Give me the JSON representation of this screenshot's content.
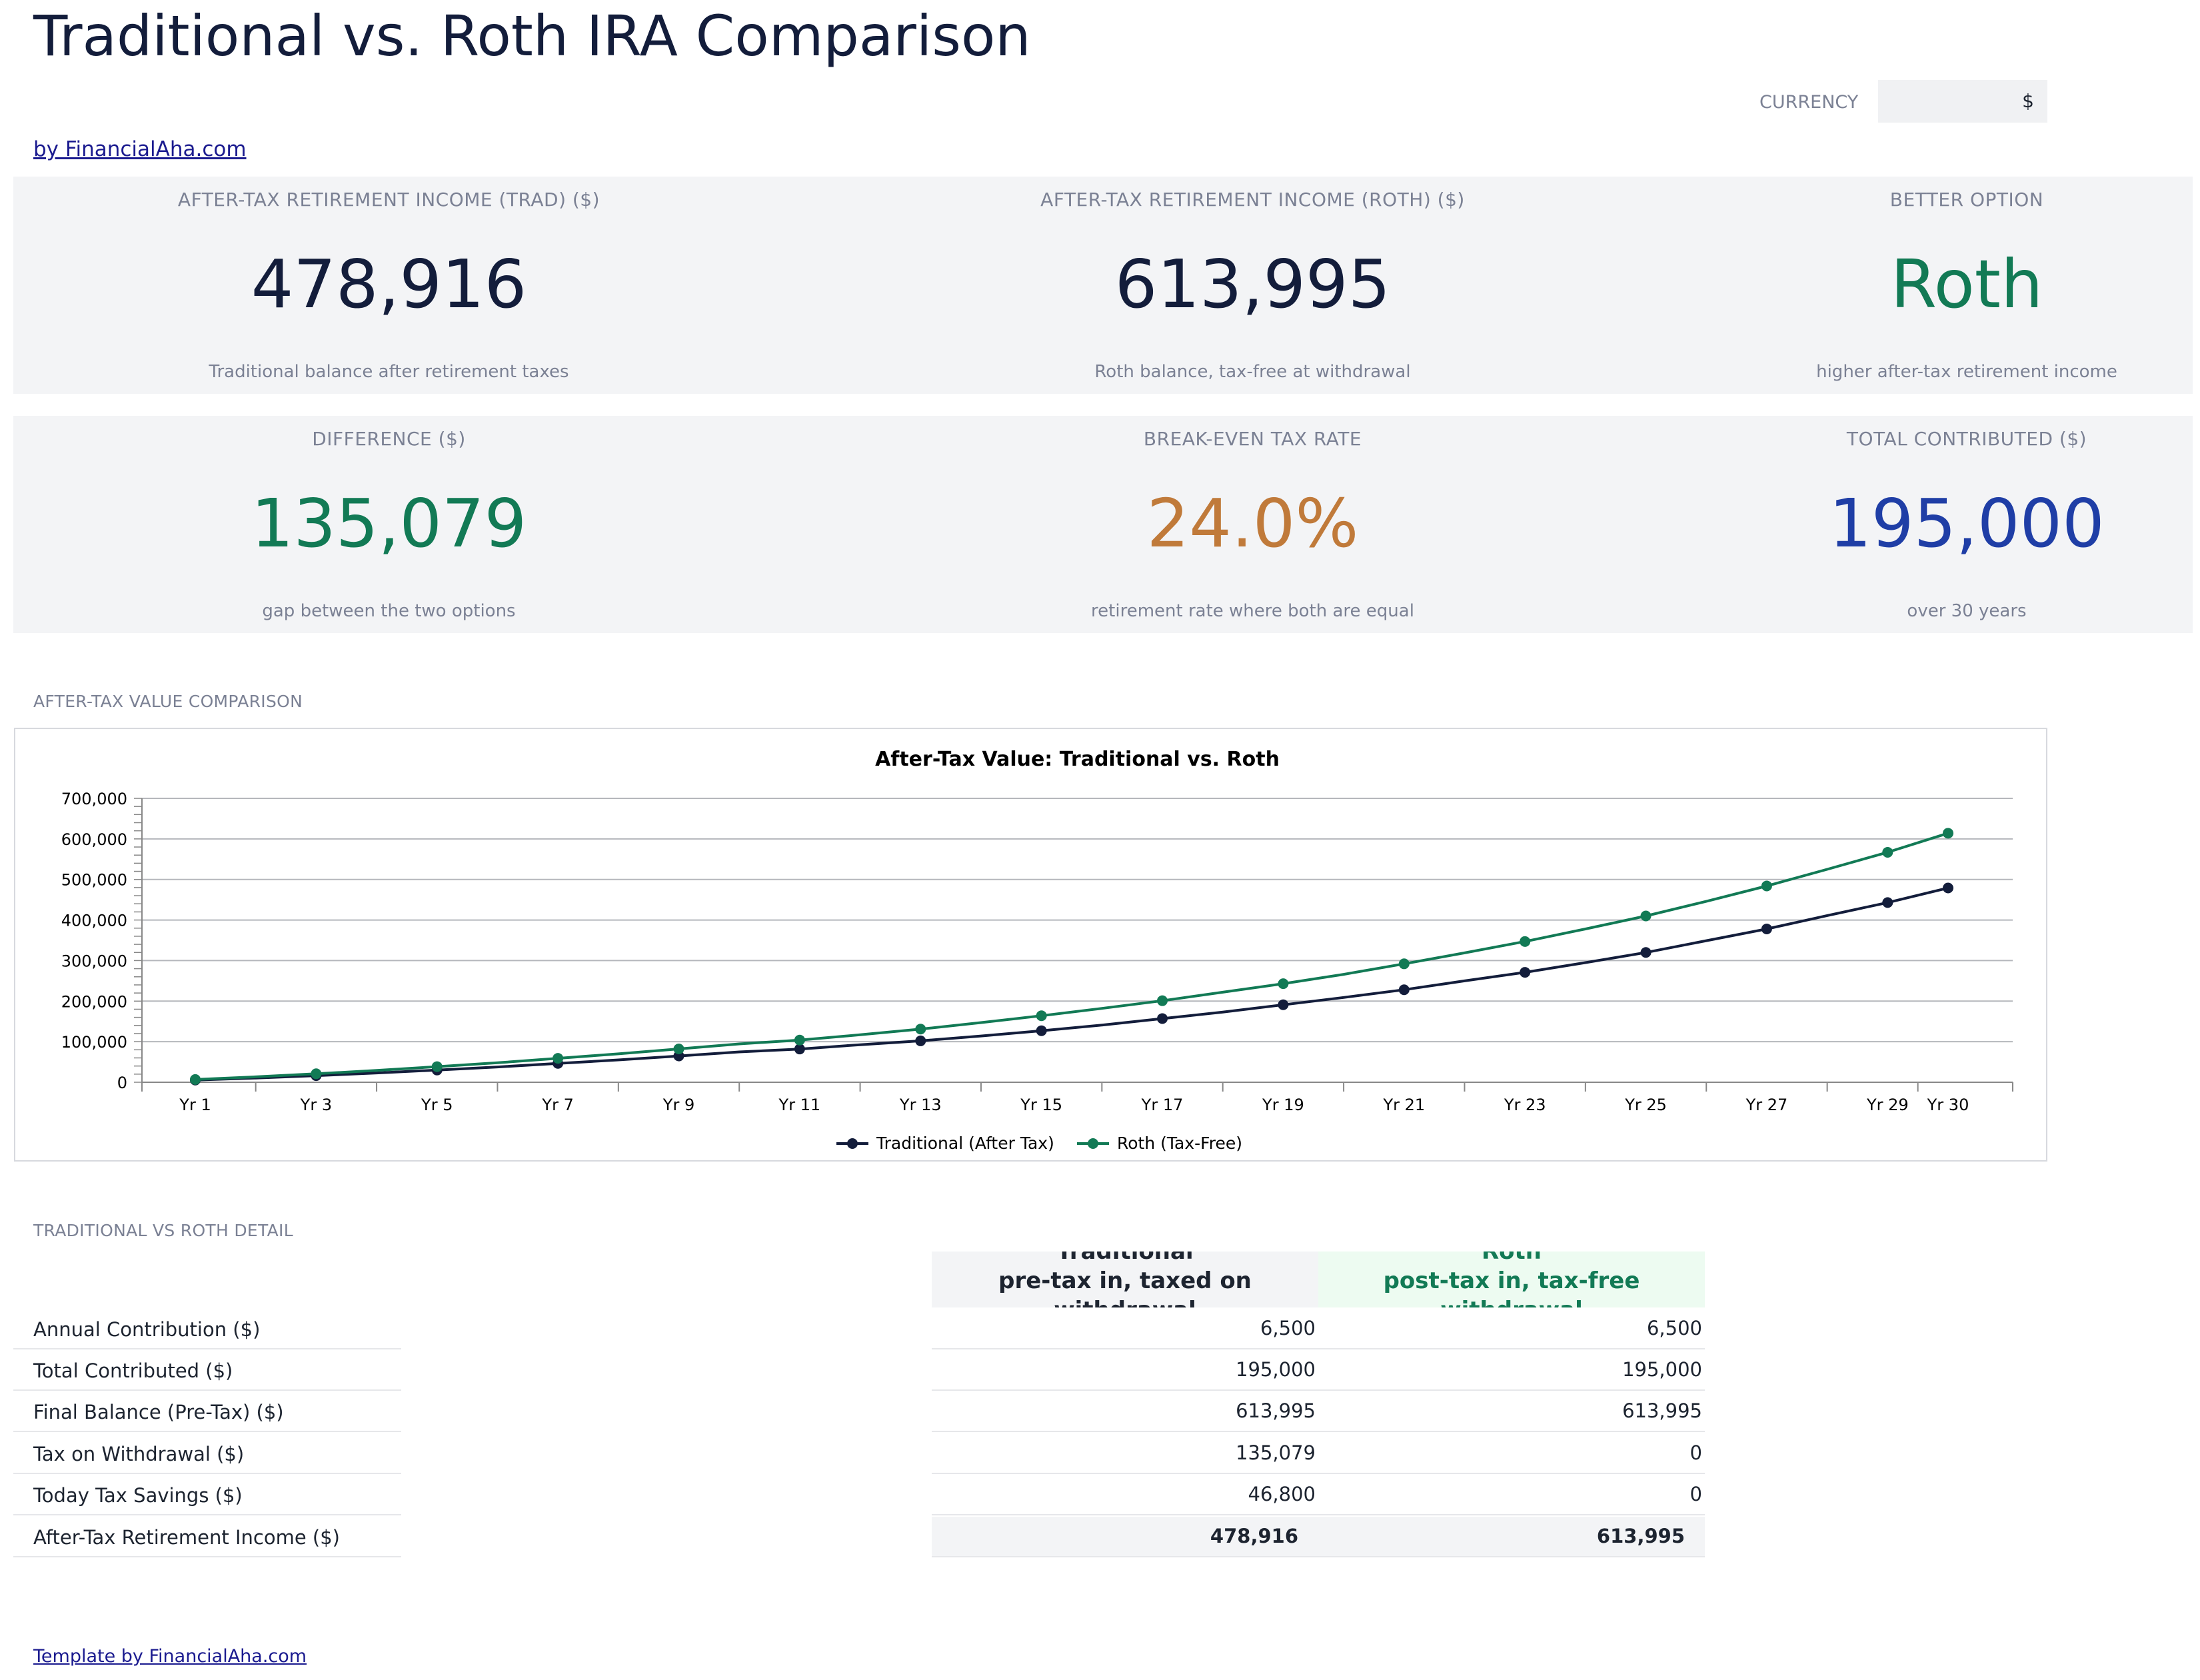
{
  "header": {
    "title": "Traditional vs. Roth IRA Comparison",
    "byline": "by FinancialAha.com",
    "currency_label": "CURRENCY",
    "currency_value": "$"
  },
  "kpis": [
    {
      "label": "AFTER-TAX RETIREMENT INCOME (TRAD) ($)",
      "value": "478,916",
      "sub": "Traditional balance after retirement taxes",
      "color": "#131d3b"
    },
    {
      "label": "AFTER-TAX RETIREMENT INCOME (ROTH) ($)",
      "value": "613,995",
      "sub": "Roth balance, tax-free at withdrawal",
      "color": "#131d3b"
    },
    {
      "label": "BETTER OPTION",
      "value": "Roth",
      "sub": "higher after-tax retirement income",
      "color": "#127a55"
    },
    {
      "label": "DIFFERENCE ($)",
      "value": "135,079",
      "sub": "gap between the two options",
      "color": "#127a55"
    },
    {
      "label": "BREAK-EVEN TAX RATE",
      "value": "24.0%",
      "sub": "retirement rate where both are equal",
      "color": "#c07a3a"
    },
    {
      "label": "TOTAL CONTRIBUTED ($)",
      "value": "195,000",
      "sub": "over 30 years",
      "color": "#1f3ea6"
    }
  ],
  "chart_section_label": "AFTER-TAX VALUE COMPARISON",
  "chart_data": {
    "type": "line",
    "title": "After-Tax Value: Traditional vs. Roth",
    "xlabel": "",
    "ylabel": "",
    "ylim": [
      0,
      700000
    ],
    "y_ticks": [
      "0",
      "100,000",
      "200,000",
      "300,000",
      "400,000",
      "500,000",
      "600,000",
      "700,000"
    ],
    "categories": [
      "Yr 1",
      "Yr 2",
      "Yr 3",
      "Yr 4",
      "Yr 5",
      "Yr 6",
      "Yr 7",
      "Yr 8",
      "Yr 9",
      "Yr 10",
      "Yr 11",
      "Yr 12",
      "Yr 13",
      "Yr 14",
      "Yr 15",
      "Yr 16",
      "Yr 17",
      "Yr 18",
      "Yr 19",
      "Yr 20",
      "Yr 21",
      "Yr 22",
      "Yr 23",
      "Yr 24",
      "Yr 25",
      "Yr 26",
      "Yr 27",
      "Yr 28",
      "Yr 29",
      "Yr 30"
    ],
    "x_tick_labels": [
      "Yr 1",
      "Yr 3",
      "Yr 5",
      "Yr 7",
      "Yr 9",
      "Yr 11",
      "Yr 13",
      "Yr 15",
      "Yr 17",
      "Yr 19",
      "Yr 21",
      "Yr 23",
      "Yr 25",
      "Yr 27",
      "Yr 29",
      "Yr 30"
    ],
    "x_tick_indices": [
      0,
      2,
      4,
      6,
      8,
      10,
      12,
      14,
      16,
      18,
      20,
      22,
      24,
      26,
      28,
      29
    ],
    "marker_indices": [
      0,
      2,
      4,
      6,
      8,
      10,
      12,
      14,
      16,
      18,
      20,
      22,
      24,
      26,
      28,
      29
    ],
    "series": [
      {
        "name": "Traditional (After Tax)",
        "color": "#131d3b",
        "values": [
          5300,
          10400,
          16300,
          22900,
          30100,
          37700,
          46400,
          55100,
          64800,
          74700,
          81900,
          92500,
          102000,
          114000,
          127000,
          141000,
          157000,
          173000,
          191000,
          209000,
          228000,
          250000,
          271000,
          295000,
          320000,
          349000,
          378000,
          411000,
          443000,
          479000
        ]
      },
      {
        "name": "Roth (Tax-Free)",
        "color": "#127a55",
        "values": [
          6800,
          13300,
          20900,
          29100,
          38500,
          48000,
          59000,
          70000,
          82200,
          94500,
          104000,
          117000,
          131000,
          147000,
          164000,
          182000,
          201000,
          222000,
          243000,
          266000,
          292000,
          319000,
          347000,
          378000,
          410000,
          446000,
          484000,
          525000,
          567000,
          614000
        ]
      }
    ],
    "legend_position": "bottom-center",
    "grid": true
  },
  "detail": {
    "section_label": "TRADITIONAL VS ROTH DETAIL",
    "trad_heading_line1": "Traditional",
    "trad_heading_line2": "pre-tax in, taxed on",
    "trad_heading_line3": "withdrawal",
    "roth_heading_line1": "Roth",
    "roth_heading_line2": "post-tax in, tax-free",
    "roth_heading_line3": "withdrawal",
    "rows": [
      {
        "label": "Annual Contribution ($)",
        "trad": "6,500",
        "roth": "6,500"
      },
      {
        "label": "Total Contributed ($)",
        "trad": "195,000",
        "roth": "195,000"
      },
      {
        "label": "Final Balance (Pre-Tax) ($)",
        "trad": "613,995",
        "roth": "613,995"
      },
      {
        "label": "Tax on Withdrawal ($)",
        "trad": "135,079",
        "roth": "0"
      },
      {
        "label": "Today Tax Savings ($)",
        "trad": "46,800",
        "roth": "0"
      },
      {
        "label": "After-Tax Retirement Income ($)",
        "trad": "478,916",
        "roth": "613,995"
      }
    ]
  },
  "footer": {
    "link": "Template by FinancialAha.com"
  }
}
